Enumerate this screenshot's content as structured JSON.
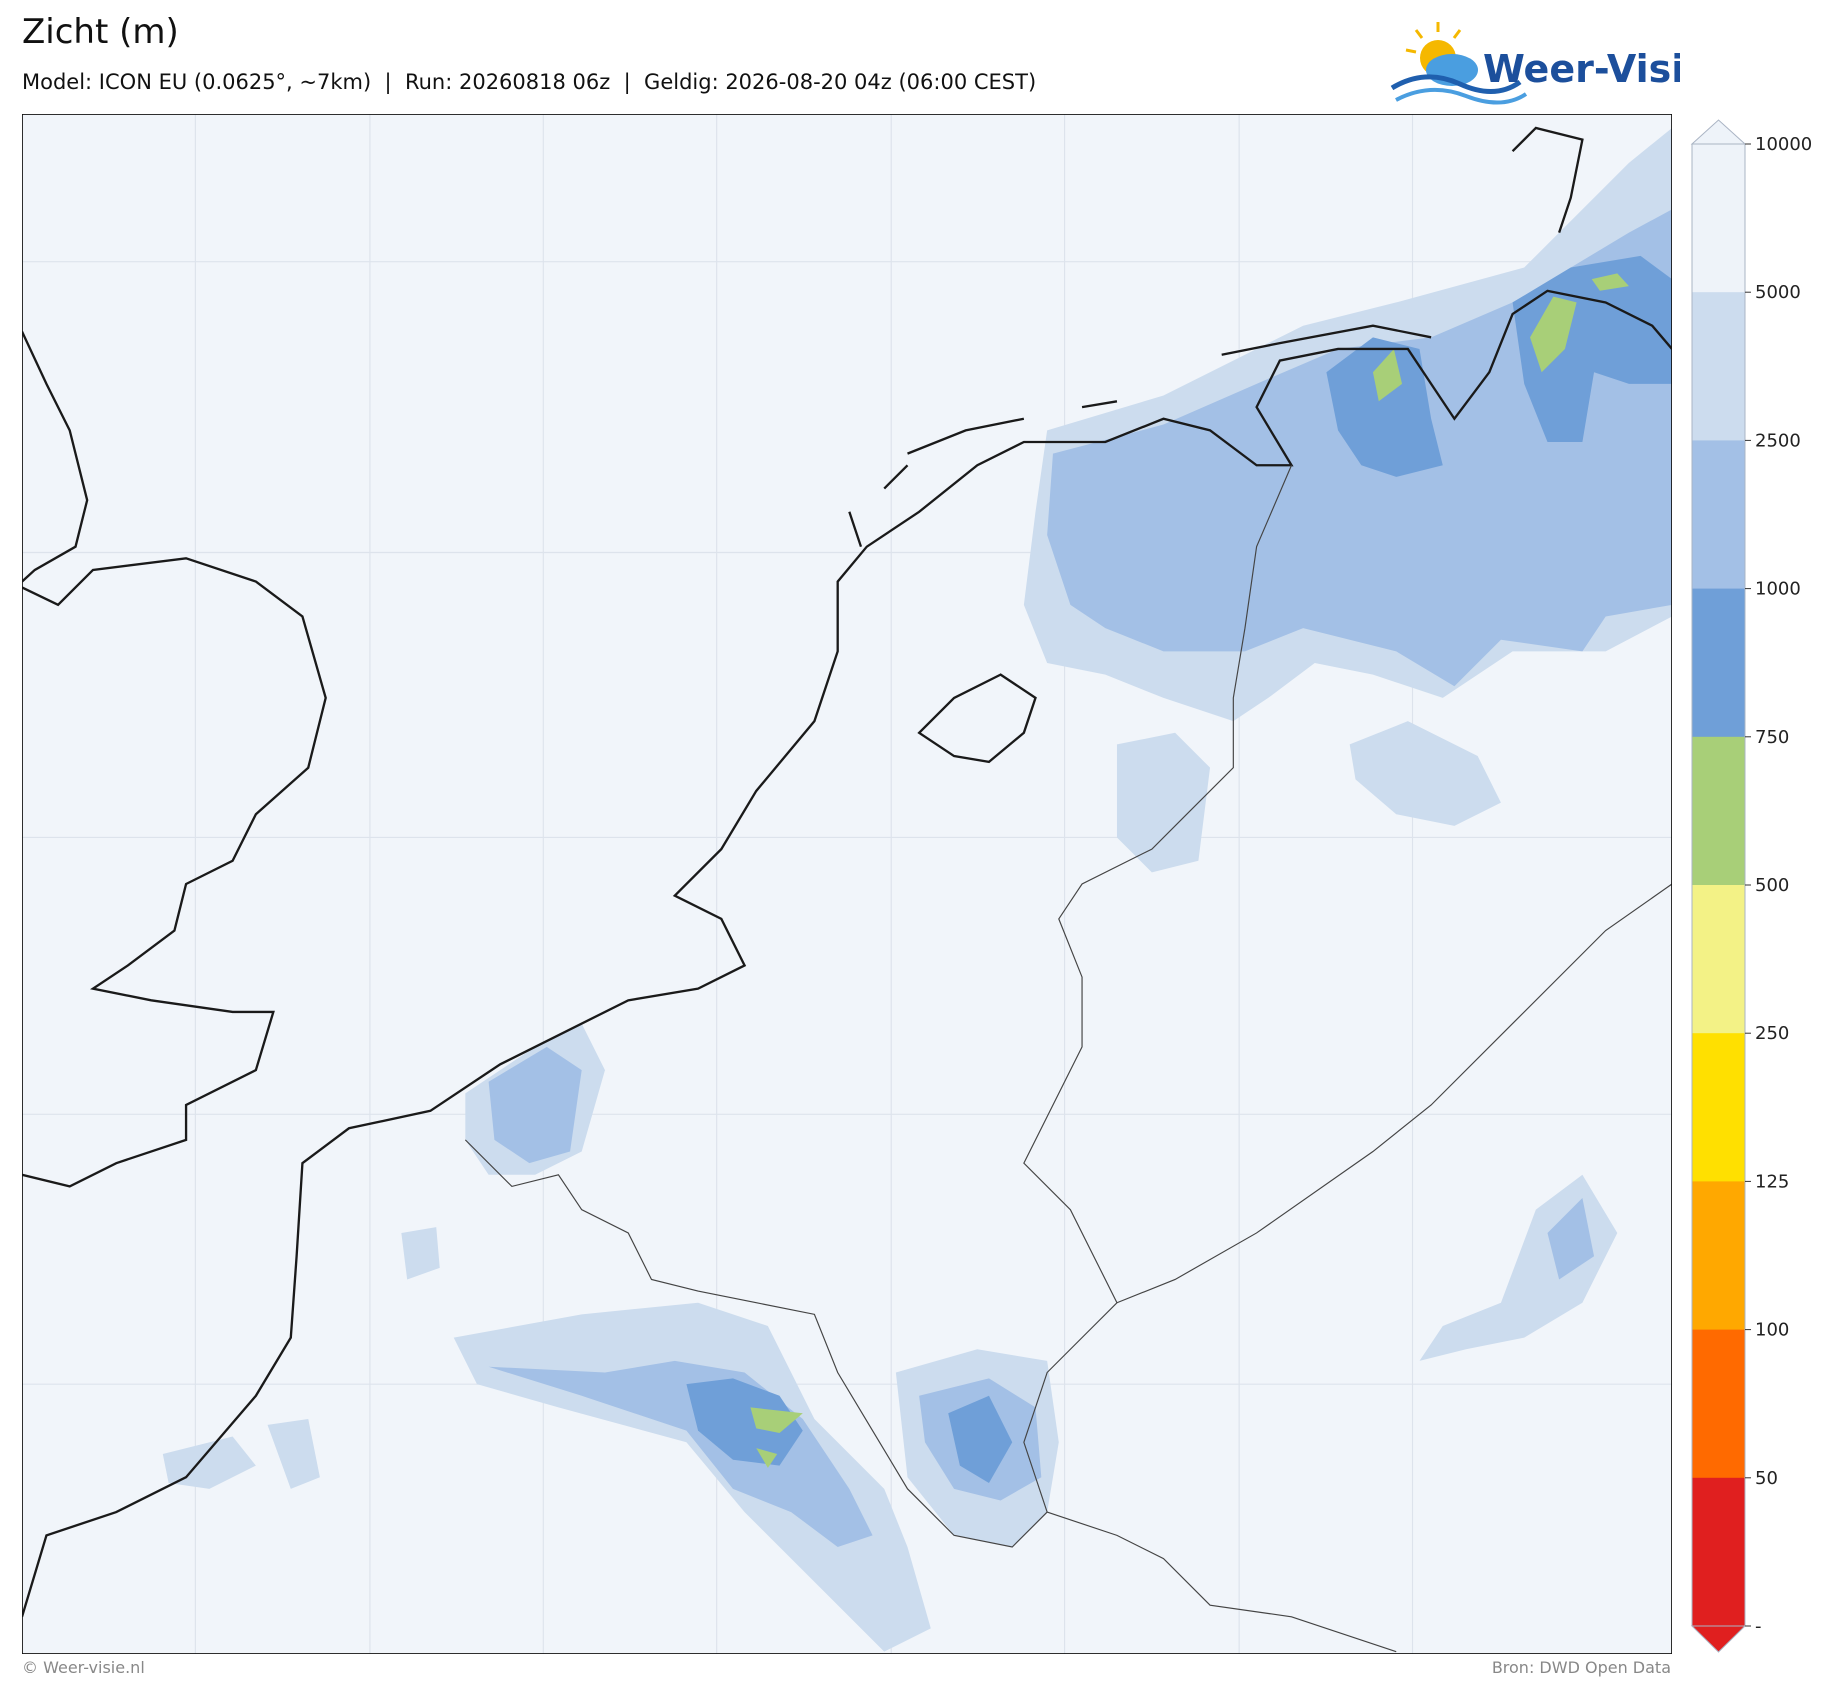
{
  "header": {
    "title": "Zicht (m)",
    "subtitle": "Model: ICON EU (0.0625°, ~7km)  |  Run: 20260818 06z  |  Geldig: 2026-08-20 04z (06:00 CEST)",
    "logo": "Weer-Visie"
  },
  "colorbar": {
    "ticks": [
      10000,
      5000,
      2500,
      1000,
      750,
      500,
      250,
      125,
      100,
      50,
      "-"
    ],
    "colors": [
      "#eef3f9",
      "#ccdcee",
      "#a3c0e6",
      "#6f9fd8",
      "#a8cf78",
      "#f3f286",
      "#ffe000",
      "#ffa800",
      "#ff6a00",
      "#e01f1f"
    ]
  },
  "footer": {
    "left": "© Weer-visie.nl",
    "right": "Bron: DWD Open Data"
  }
}
